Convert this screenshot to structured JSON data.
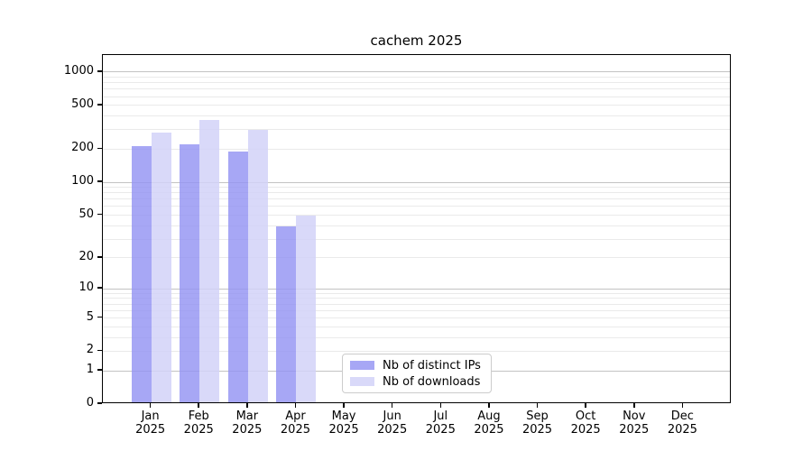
{
  "title": "cachem 2025",
  "chart_data": {
    "type": "bar",
    "title": "cachem 2025",
    "xlabel": "",
    "ylabel": "",
    "y_scale": "log1p",
    "ylim": [
      0,
      1427
    ],
    "grid": true,
    "categories": [
      "Jan",
      "Feb",
      "Mar",
      "Apr",
      "May",
      "Jun",
      "Jul",
      "Aug",
      "Sep",
      "Oct",
      "Nov",
      "Dec"
    ],
    "year_label": "2025",
    "series": [
      {
        "name": "Nb of distinct IPs",
        "color": "rgba(148,148,243,0.82)",
        "values": [
          206,
          214,
          185,
          38,
          null,
          null,
          null,
          null,
          null,
          null,
          null,
          null
        ]
      },
      {
        "name": "Nb of downloads",
        "color": "rgba(210,210,248,0.85)",
        "values": [
          273,
          352,
          288,
          48,
          null,
          null,
          null,
          null,
          null,
          null,
          null,
          null
        ]
      }
    ],
    "y_tick_values": [
      1000,
      500,
      200,
      100,
      50,
      20,
      10,
      5,
      2,
      1,
      0
    ],
    "y_tick_labels": [
      "1000",
      "500",
      "200",
      "100",
      "50",
      "20",
      "10",
      "5",
      "2",
      "1",
      "0"
    ],
    "grid_major_values": [
      1,
      10,
      100,
      1000
    ],
    "grid_minor_values": [
      2,
      3,
      4,
      5,
      6,
      7,
      8,
      9,
      20,
      30,
      40,
      50,
      60,
      70,
      80,
      90,
      200,
      300,
      400,
      500,
      600,
      700,
      800,
      900
    ],
    "legend_position": "lower center",
    "colors": {
      "grid_major": "#c3c3c3",
      "grid_minor": "#eaeaea",
      "axis": "#000000",
      "text": "#000000",
      "background": "#ffffff"
    }
  }
}
